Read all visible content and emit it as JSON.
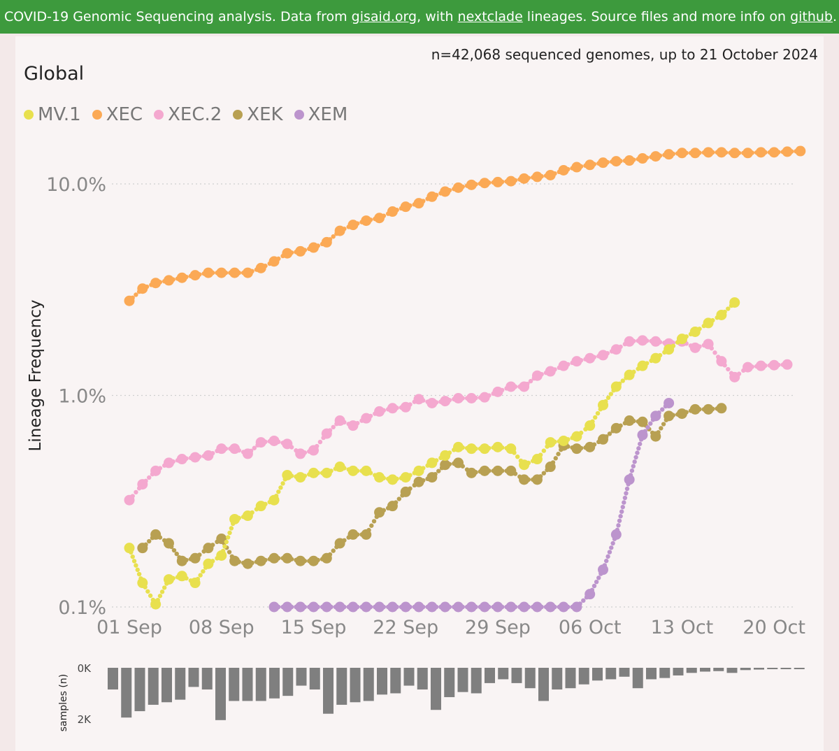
{
  "banner": {
    "text_1": "COVID-19 Genomic Sequencing analysis. Data from ",
    "link_gisaid": "gisaid.org",
    "text_2": ", with ",
    "link_nextclade": "nextclade",
    "text_3": " lineages. Source files and more info on ",
    "link_github": "github",
    "text_4": "."
  },
  "header": {
    "count_text": "n=42,068 sequenced genomes, up to 21 October 2024",
    "region": "Global"
  },
  "colors": {
    "MV.1": "#e8e04e",
    "XEC": "#fba955",
    "XEC.2": "#f4a8cf",
    "XEK": "#b8a052",
    "XEM": "#bc94cd",
    "bars": "#7f7f7f",
    "grid": "#cfcfcf"
  },
  "chart_data": [
    {
      "type": "line",
      "title": "",
      "xlabel": "",
      "ylabel": "Lineage Frequency",
      "y_scale": "log",
      "ylim": [
        0.1,
        14.5
      ],
      "y_ticks": [
        0.1,
        1.0,
        10.0
      ],
      "y_tick_labels": [
        "0.1%",
        "1.0%",
        "10.0%"
      ],
      "x_ticks": [
        0,
        7,
        14,
        21,
        28,
        35,
        42,
        49
      ],
      "x_tick_labels": [
        "01 Sep",
        "08 Sep",
        "15 Sep",
        "22 Sep",
        "29 Sep",
        "06 Oct",
        "13 Oct",
        "20 Oct"
      ],
      "legend_position": "top-left",
      "grid": true,
      "series": [
        {
          "name": "XEC",
          "x": [
            0,
            1,
            2,
            3,
            4,
            5,
            6,
            7,
            8,
            9,
            10,
            11,
            12,
            13,
            14,
            15,
            16,
            17,
            18,
            19,
            20,
            21,
            22,
            23,
            24,
            25,
            26,
            27,
            28,
            29,
            30,
            31,
            32,
            33,
            34,
            35,
            36,
            37,
            38,
            39,
            40,
            41,
            42,
            43,
            44,
            45,
            46,
            47,
            48,
            49,
            50,
            51
          ],
          "values": [
            2.8,
            3.2,
            3.4,
            3.5,
            3.6,
            3.7,
            3.8,
            3.8,
            3.8,
            3.8,
            4.0,
            4.3,
            4.7,
            4.8,
            5.0,
            5.3,
            6.0,
            6.4,
            6.7,
            6.9,
            7.4,
            7.8,
            8.1,
            8.7,
            9.2,
            9.6,
            9.9,
            10.1,
            10.2,
            10.3,
            10.6,
            10.8,
            11.0,
            11.6,
            12.0,
            12.3,
            12.6,
            12.8,
            12.9,
            13.2,
            13.5,
            13.8,
            14.0,
            14.0,
            14.1,
            14.1,
            14.0,
            14.0,
            14.1,
            14.1,
            14.2,
            14.3
          ]
        },
        {
          "name": "XEC.2",
          "x": [
            0,
            1,
            2,
            3,
            4,
            5,
            6,
            7,
            8,
            9,
            10,
            11,
            12,
            13,
            14,
            15,
            16,
            17,
            18,
            19,
            20,
            21,
            22,
            23,
            24,
            25,
            26,
            27,
            28,
            29,
            30,
            31,
            32,
            33,
            34,
            35,
            36,
            37,
            38,
            39,
            40,
            41,
            42,
            43,
            44,
            45,
            46,
            47,
            48,
            49,
            50
          ],
          "values": [
            0.32,
            0.38,
            0.44,
            0.48,
            0.5,
            0.51,
            0.52,
            0.56,
            0.56,
            0.53,
            0.6,
            0.61,
            0.59,
            0.53,
            0.55,
            0.66,
            0.76,
            0.72,
            0.78,
            0.84,
            0.87,
            0.88,
            0.96,
            0.92,
            0.94,
            0.97,
            0.97,
            0.98,
            1.04,
            1.1,
            1.1,
            1.24,
            1.3,
            1.38,
            1.45,
            1.5,
            1.55,
            1.65,
            1.8,
            1.82,
            1.8,
            1.76,
            1.8,
            1.68,
            1.75,
            1.45,
            1.22,
            1.36,
            1.38,
            1.39,
            1.4
          ]
        },
        {
          "name": "MV.1",
          "x": [
            0,
            1,
            2,
            3,
            4,
            5,
            6,
            7,
            8,
            9,
            10,
            11,
            12,
            13,
            14,
            15,
            16,
            17,
            18,
            19,
            20,
            21,
            22,
            23,
            24,
            25,
            26,
            27,
            28,
            29,
            30,
            31,
            32,
            33,
            34,
            35,
            36,
            37,
            38,
            39,
            40,
            41,
            42,
            43,
            44,
            45,
            46
          ],
          "values": [
            0.19,
            0.13,
            0.103,
            0.135,
            0.14,
            0.13,
            0.16,
            0.175,
            0.26,
            0.27,
            0.3,
            0.32,
            0.42,
            0.41,
            0.43,
            0.43,
            0.46,
            0.44,
            0.44,
            0.41,
            0.4,
            0.41,
            0.44,
            0.48,
            0.52,
            0.57,
            0.56,
            0.56,
            0.57,
            0.56,
            0.47,
            0.5,
            0.6,
            0.61,
            0.64,
            0.72,
            0.9,
            1.1,
            1.25,
            1.38,
            1.5,
            1.65,
            1.85,
            2.0,
            2.2,
            2.4,
            2.75
          ]
        },
        {
          "name": "XEK",
          "x": [
            1,
            2,
            3,
            4,
            5,
            6,
            7,
            8,
            9,
            10,
            11,
            12,
            13,
            14,
            15,
            16,
            17,
            18,
            19,
            20,
            21,
            22,
            23,
            24,
            25,
            26,
            27,
            28,
            29,
            30,
            31,
            32,
            33,
            34,
            35,
            36,
            37,
            38,
            39,
            40,
            41,
            42,
            43,
            44,
            45
          ],
          "values": [
            0.19,
            0.22,
            0.2,
            0.165,
            0.17,
            0.19,
            0.21,
            0.165,
            0.16,
            0.165,
            0.17,
            0.17,
            0.165,
            0.165,
            0.17,
            0.2,
            0.22,
            0.22,
            0.28,
            0.3,
            0.35,
            0.39,
            0.41,
            0.47,
            0.48,
            0.43,
            0.44,
            0.44,
            0.44,
            0.4,
            0.4,
            0.46,
            0.58,
            0.56,
            0.57,
            0.62,
            0.7,
            0.76,
            0.75,
            0.64,
            0.8,
            0.82,
            0.86,
            0.86,
            0.87
          ]
        },
        {
          "name": "XEM",
          "x": [
            11,
            12,
            13,
            14,
            15,
            16,
            17,
            18,
            19,
            20,
            21,
            22,
            23,
            24,
            25,
            26,
            27,
            28,
            29,
            30,
            31,
            32,
            33,
            34,
            35,
            36,
            37,
            38,
            39,
            40,
            41
          ],
          "values": [
            0.1,
            0.1,
            0.1,
            0.1,
            0.1,
            0.1,
            0.1,
            0.1,
            0.1,
            0.1,
            0.1,
            0.1,
            0.1,
            0.1,
            0.1,
            0.1,
            0.1,
            0.1,
            0.1,
            0.1,
            0.1,
            0.1,
            0.1,
            0.1,
            0.115,
            0.15,
            0.22,
            0.4,
            0.65,
            0.8,
            0.92
          ]
        }
      ]
    },
    {
      "type": "bar",
      "title": "",
      "xlabel": "",
      "ylabel": "samples (n)",
      "ylim": [
        0,
        2000
      ],
      "y_ticks": [
        0,
        2000
      ],
      "y_tick_labels": [
        "0K",
        "2K"
      ],
      "x": [
        0,
        1,
        2,
        3,
        4,
        5,
        6,
        7,
        8,
        9,
        10,
        11,
        12,
        13,
        14,
        15,
        16,
        17,
        18,
        19,
        20,
        21,
        22,
        23,
        24,
        25,
        26,
        27,
        28,
        29,
        30,
        31,
        32,
        33,
        34,
        35,
        36,
        37,
        38,
        39,
        40,
        41,
        42,
        43,
        44,
        45,
        46,
        47,
        48,
        49,
        50,
        51
      ],
      "values": [
        850,
        1950,
        1700,
        1450,
        1350,
        1250,
        750,
        850,
        2050,
        1300,
        1300,
        1300,
        1200,
        1100,
        700,
        850,
        1800,
        1450,
        1350,
        1300,
        1050,
        1000,
        700,
        850,
        1650,
        1150,
        950,
        1000,
        600,
        450,
        600,
        800,
        1300,
        850,
        800,
        650,
        500,
        450,
        350,
        800,
        450,
        400,
        300,
        200,
        150,
        130,
        200,
        90,
        70,
        50,
        40,
        40
      ]
    }
  ]
}
